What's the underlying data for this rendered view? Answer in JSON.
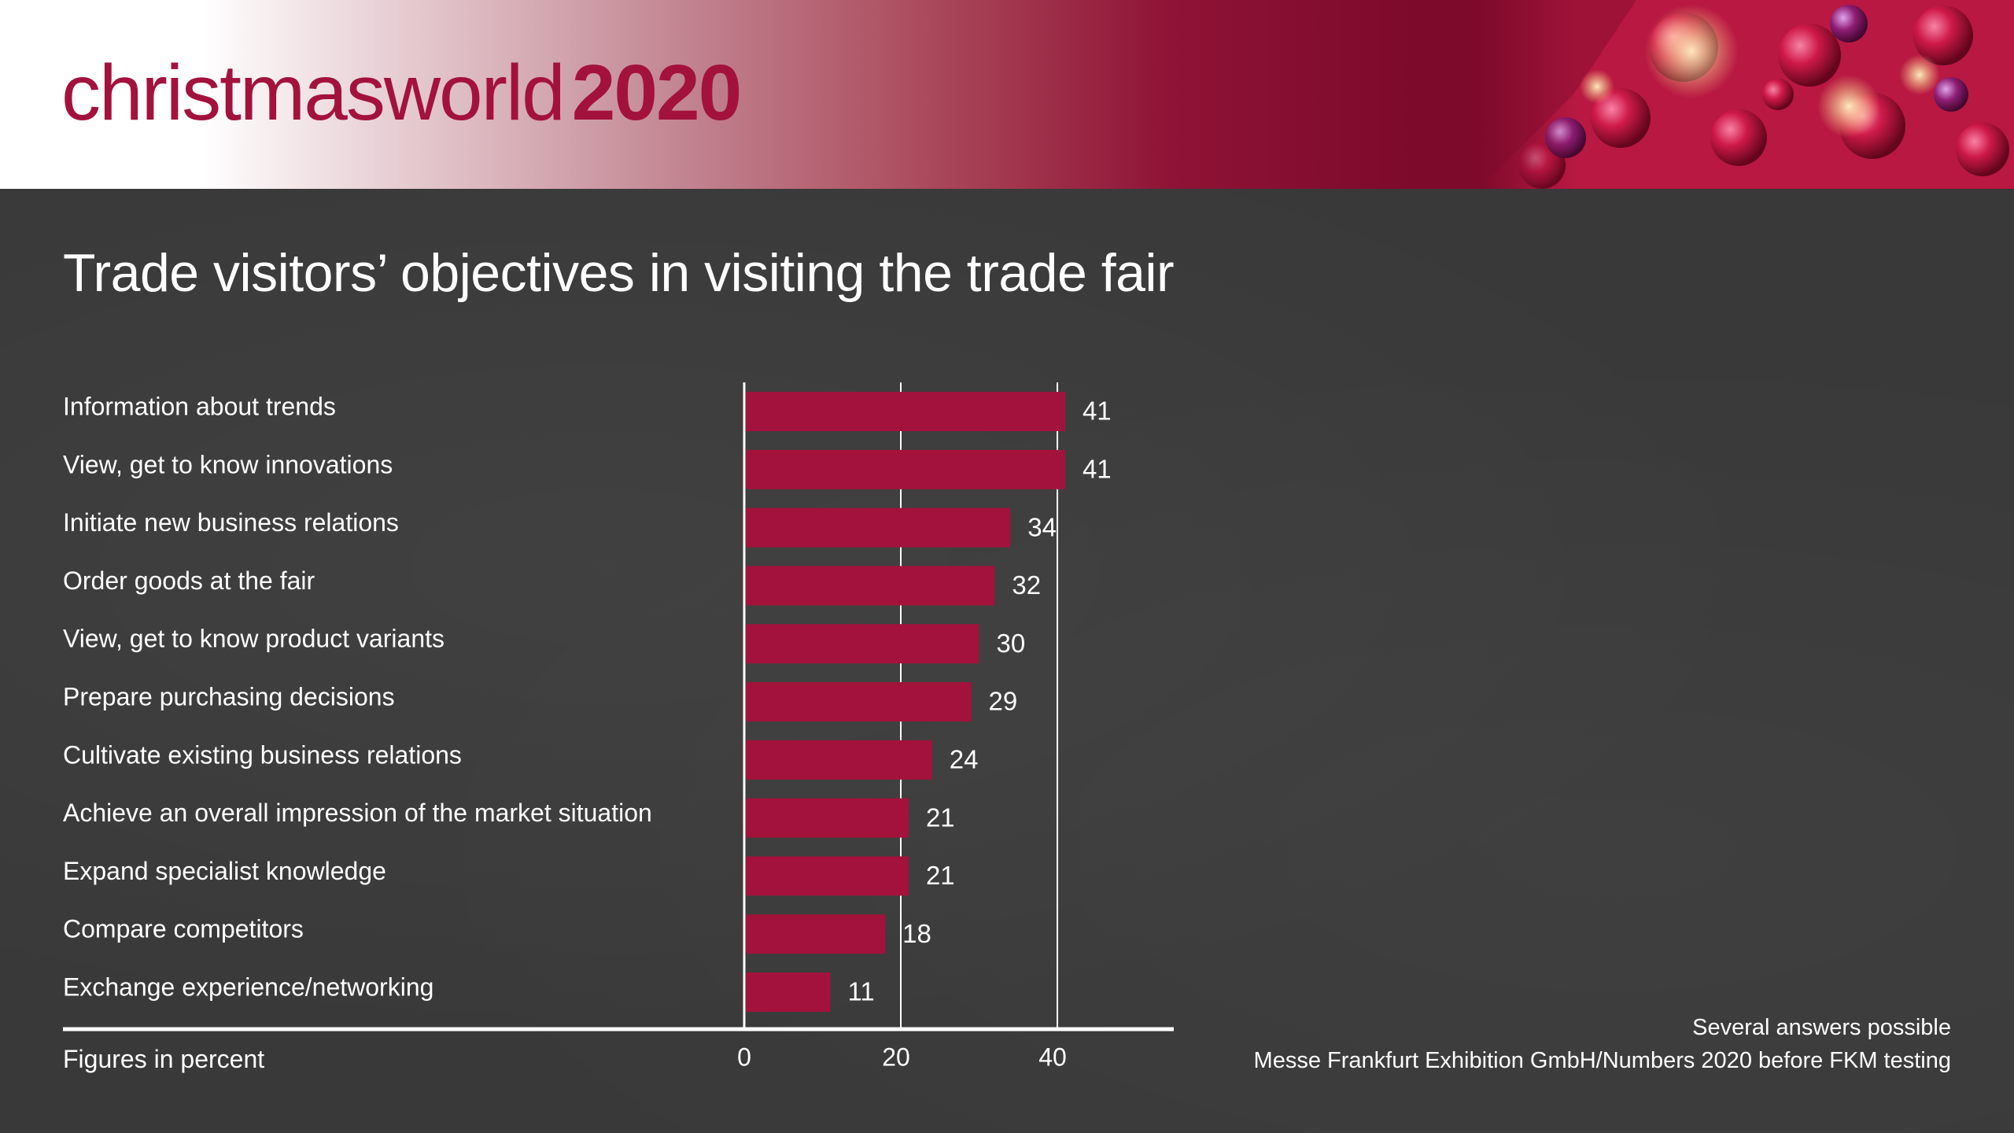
{
  "brand": {
    "name": "christmasworld",
    "year": "2020"
  },
  "colors": {
    "bar": "#a3123d",
    "background": "#393939",
    "header_accent": "#7d0a2b",
    "text": "#ffffff"
  },
  "chart_data": {
    "type": "bar",
    "orientation": "horizontal",
    "title": "Trade visitors’ objectives in visiting the trade fair",
    "categories": [
      "Information about trends",
      "View, get to know innovations",
      "Initiate new business relations",
      "Order goods at the fair",
      "View, get to know product variants",
      "Prepare purchasing decisions",
      "Cultivate existing business relations",
      "Achieve an overall impression of the market situation",
      "Expand specialist knowledge",
      "Compare competitors",
      "Exchange experience/networking"
    ],
    "values": [
      41,
      41,
      34,
      32,
      30,
      29,
      24,
      21,
      21,
      18,
      11
    ],
    "value_labels": [
      "41",
      "41",
      "34",
      "32",
      "30",
      "29",
      "24",
      "21",
      "21",
      "18",
      "11"
    ],
    "xlim": [
      0,
      55
    ],
    "xticks": [
      0,
      20,
      40
    ],
    "xtick_labels": [
      "0",
      "20",
      "40"
    ],
    "xlabel": "Figures in percent",
    "grid": true,
    "legend": "none"
  },
  "notes": {
    "line1": "Several answers possible",
    "line2": "Messe Frankfurt Exhibition GmbH/Numbers 2020 before FKM testing"
  }
}
